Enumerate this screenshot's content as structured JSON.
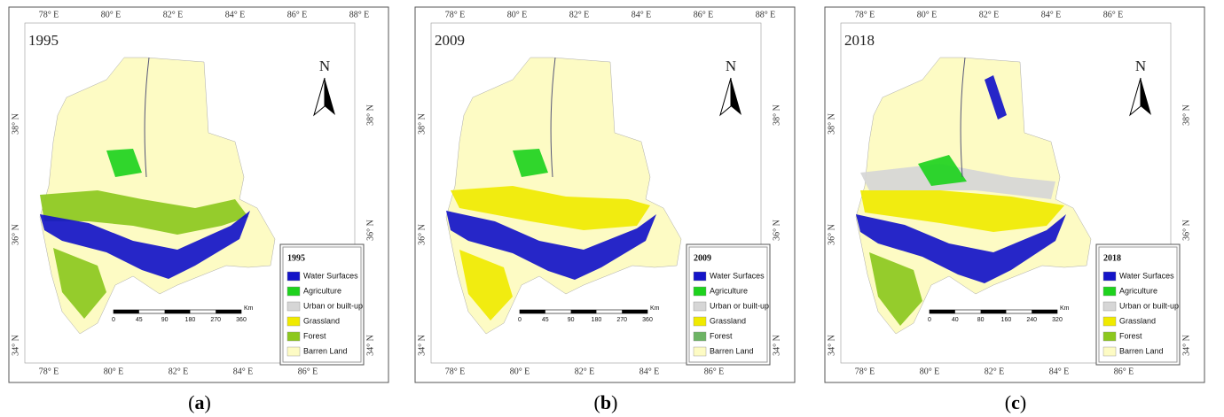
{
  "panels": [
    {
      "year": "1995",
      "caption": [
        "(",
        "a",
        ")"
      ],
      "top_lon_labels": [
        "78° E",
        "80° E",
        "82° E",
        "84° E",
        "86° E",
        "88° E"
      ],
      "bottom_lon_labels": [
        "78° E",
        "80° E",
        "82° E",
        "84° E",
        "86° E"
      ],
      "left_lat_labels": [
        "38° N",
        "36° N",
        "34° N"
      ],
      "right_lat_labels": [
        "38° N",
        "36° N",
        "34° N"
      ],
      "north": "N",
      "legend": {
        "title": "1995",
        "items": [
          {
            "label": "Water Surfaces",
            "color": "#1414c8"
          },
          {
            "label": "Agriculture",
            "color": "#1ed21e"
          },
          {
            "label": "Urban or built-up",
            "color": "#d6d6d6"
          },
          {
            "label": "Grassland",
            "color": "#f0ea00"
          },
          {
            "label": "Forest",
            "color": "#8cc81e"
          },
          {
            "label": "Barren Land",
            "color": "#fdfbc4"
          }
        ]
      },
      "scale": {
        "unit": "Km",
        "labels": [
          "0",
          "45",
          "90",
          "180",
          "270",
          "360"
        ]
      }
    },
    {
      "year": "2009",
      "caption": [
        "(",
        "b",
        ")"
      ],
      "top_lon_labels": [
        "78° E",
        "80° E",
        "82° E",
        "84° E",
        "86° E",
        "88° E"
      ],
      "bottom_lon_labels": [
        "78° E",
        "80° E",
        "82° E",
        "84° E",
        "86° E"
      ],
      "left_lat_labels": [
        "38° N",
        "36° N",
        "34° N"
      ],
      "right_lat_labels": [
        "38° N",
        "36° N",
        "34° N"
      ],
      "north": "N",
      "legend": {
        "title": "2009",
        "items": [
          {
            "label": "Water Surfaces",
            "color": "#1414c8"
          },
          {
            "label": "Agriculture",
            "color": "#1ed21e"
          },
          {
            "label": "Urban or built-up",
            "color": "#d6d6d6"
          },
          {
            "label": "Grassland",
            "color": "#f0ea00"
          },
          {
            "label": "Forest",
            "color": "#6db464"
          },
          {
            "label": "Barren Land",
            "color": "#fdfbc4"
          }
        ]
      },
      "scale": {
        "unit": "Km",
        "labels": [
          "0",
          "45",
          "90",
          "180",
          "270",
          "360"
        ]
      }
    },
    {
      "year": "2018",
      "caption": [
        "(",
        "c",
        ")"
      ],
      "top_lon_labels": [
        "78° E",
        "80° E",
        "82° E",
        "84° E",
        "86° E"
      ],
      "bottom_lon_labels": [
        "78° E",
        "80° E",
        "82° E",
        "84° E",
        "86° E"
      ],
      "left_lat_labels": [
        "38° N",
        "36° N",
        "34° N"
      ],
      "right_lat_labels": [
        "38° N",
        "36° N",
        "34° N"
      ],
      "north": "N",
      "legend": {
        "title": "2018",
        "items": [
          {
            "label": "Water Surfaces",
            "color": "#1414c8"
          },
          {
            "label": "Agriculture",
            "color": "#1ed21e"
          },
          {
            "label": "Urban or built-up",
            "color": "#d6d6d6"
          },
          {
            "label": "Grassland",
            "color": "#f0ea00"
          },
          {
            "label": "Forest",
            "color": "#8cc81e"
          },
          {
            "label": "Barren Land",
            "color": "#fdfbc4"
          }
        ]
      },
      "scale": {
        "unit": "Km",
        "labels": [
          "0",
          "40",
          "80",
          "160",
          "240",
          "320"
        ]
      }
    }
  ]
}
